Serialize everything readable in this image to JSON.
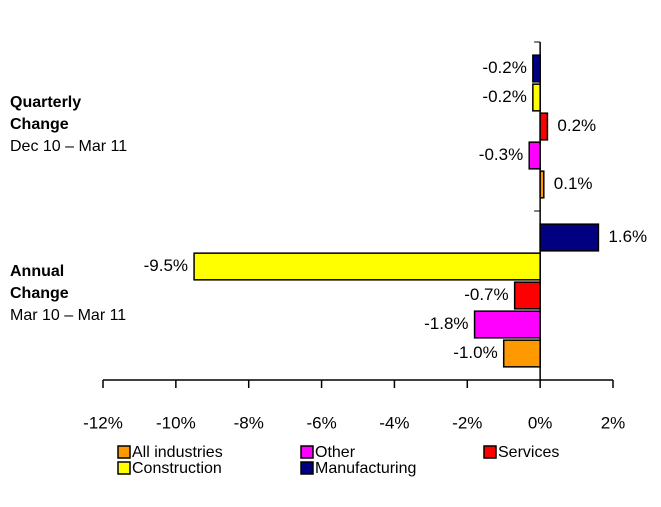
{
  "chart_data": {
    "type": "hbar",
    "categories": [
      "Quarterly Change",
      "Annual Change"
    ],
    "category_subtitles": [
      "Dec 10 – Mar 11",
      "Mar 10 – Mar 11"
    ],
    "series": [
      {
        "name": "All industries",
        "color": "#ff9900",
        "values": [
          0.1,
          -1.0
        ],
        "value_labels": [
          "0.1%",
          "-1.0%"
        ]
      },
      {
        "name": "Other",
        "color": "#ff00ff",
        "values": [
          -0.3,
          -1.8
        ],
        "value_labels": [
          "-0.3%",
          "-1.8%"
        ]
      },
      {
        "name": "Services",
        "color": "#ff0000",
        "values": [
          0.2,
          -0.7
        ],
        "value_labels": [
          "0.2%",
          "-0.7%"
        ]
      },
      {
        "name": "Construction",
        "color": "#ffff00",
        "values": [
          -0.2,
          -9.5
        ],
        "value_labels": [
          "-0.2%",
          "-9.5%"
        ]
      },
      {
        "name": "Manufacturing",
        "color": "#000080",
        "values": [
          -0.2,
          1.6
        ],
        "value_labels": [
          "-0.2%",
          "1.6%"
        ]
      }
    ],
    "xlim": [
      -12,
      2
    ],
    "xticks": [
      {
        "value": -12,
        "label": "-12%"
      },
      {
        "value": -10,
        "label": "-10%"
      },
      {
        "value": -8,
        "label": "-8%"
      },
      {
        "value": -6,
        "label": "-6%"
      },
      {
        "value": -4,
        "label": "-4%"
      },
      {
        "value": -2,
        "label": "-2%"
      },
      {
        "value": 0,
        "label": "0%"
      },
      {
        "value": 2,
        "label": "2%"
      }
    ]
  }
}
